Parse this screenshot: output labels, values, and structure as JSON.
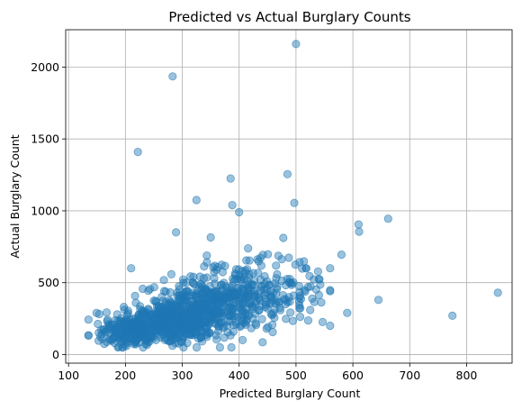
{
  "chart_data": {
    "type": "scatter",
    "title": "Predicted vs Actual Burglary Counts",
    "xlabel": "Predicted Burglary Count",
    "ylabel": "Actual Burglary Count",
    "xlim": [
      95,
      880
    ],
    "ylim": [
      -60,
      2260
    ],
    "xticks": [
      100,
      200,
      300,
      400,
      500,
      600,
      700,
      800
    ],
    "yticks": [
      0,
      500,
      1000,
      1500,
      2000
    ],
    "grid": true,
    "legend": "none",
    "point_color": "#1f77b4",
    "outliers": [
      [
        500,
        2160
      ],
      [
        283,
        1935
      ],
      [
        222,
        1410
      ],
      [
        385,
        1225
      ],
      [
        485,
        1255
      ],
      [
        325,
        1075
      ],
      [
        388,
        1040
      ],
      [
        400,
        990
      ],
      [
        497,
        1055
      ],
      [
        662,
        945
      ],
      [
        610,
        905
      ],
      [
        611,
        855
      ],
      [
        289,
        850
      ],
      [
        350,
        815
      ],
      [
        855,
        430
      ],
      [
        775,
        270
      ],
      [
        645,
        380
      ],
      [
        580,
        695
      ],
      [
        560,
        600
      ],
      [
        590,
        290
      ],
      [
        560,
        200
      ],
      [
        525,
        310
      ],
      [
        210,
        600
      ]
    ],
    "clusters": [
      {
        "center": [
          265,
          210
        ],
        "spread": [
          45,
          70
        ],
        "count": 380
      },
      {
        "center": [
          325,
          300
        ],
        "spread": [
          45,
          95
        ],
        "count": 330
      },
      {
        "center": [
          395,
          400
        ],
        "spread": [
          50,
          120
        ],
        "count": 220
      },
      {
        "center": [
          475,
          470
        ],
        "spread": [
          50,
          130
        ],
        "count": 90
      },
      {
        "center": [
          205,
          140
        ],
        "spread": [
          30,
          45
        ],
        "count": 110
      }
    ]
  }
}
